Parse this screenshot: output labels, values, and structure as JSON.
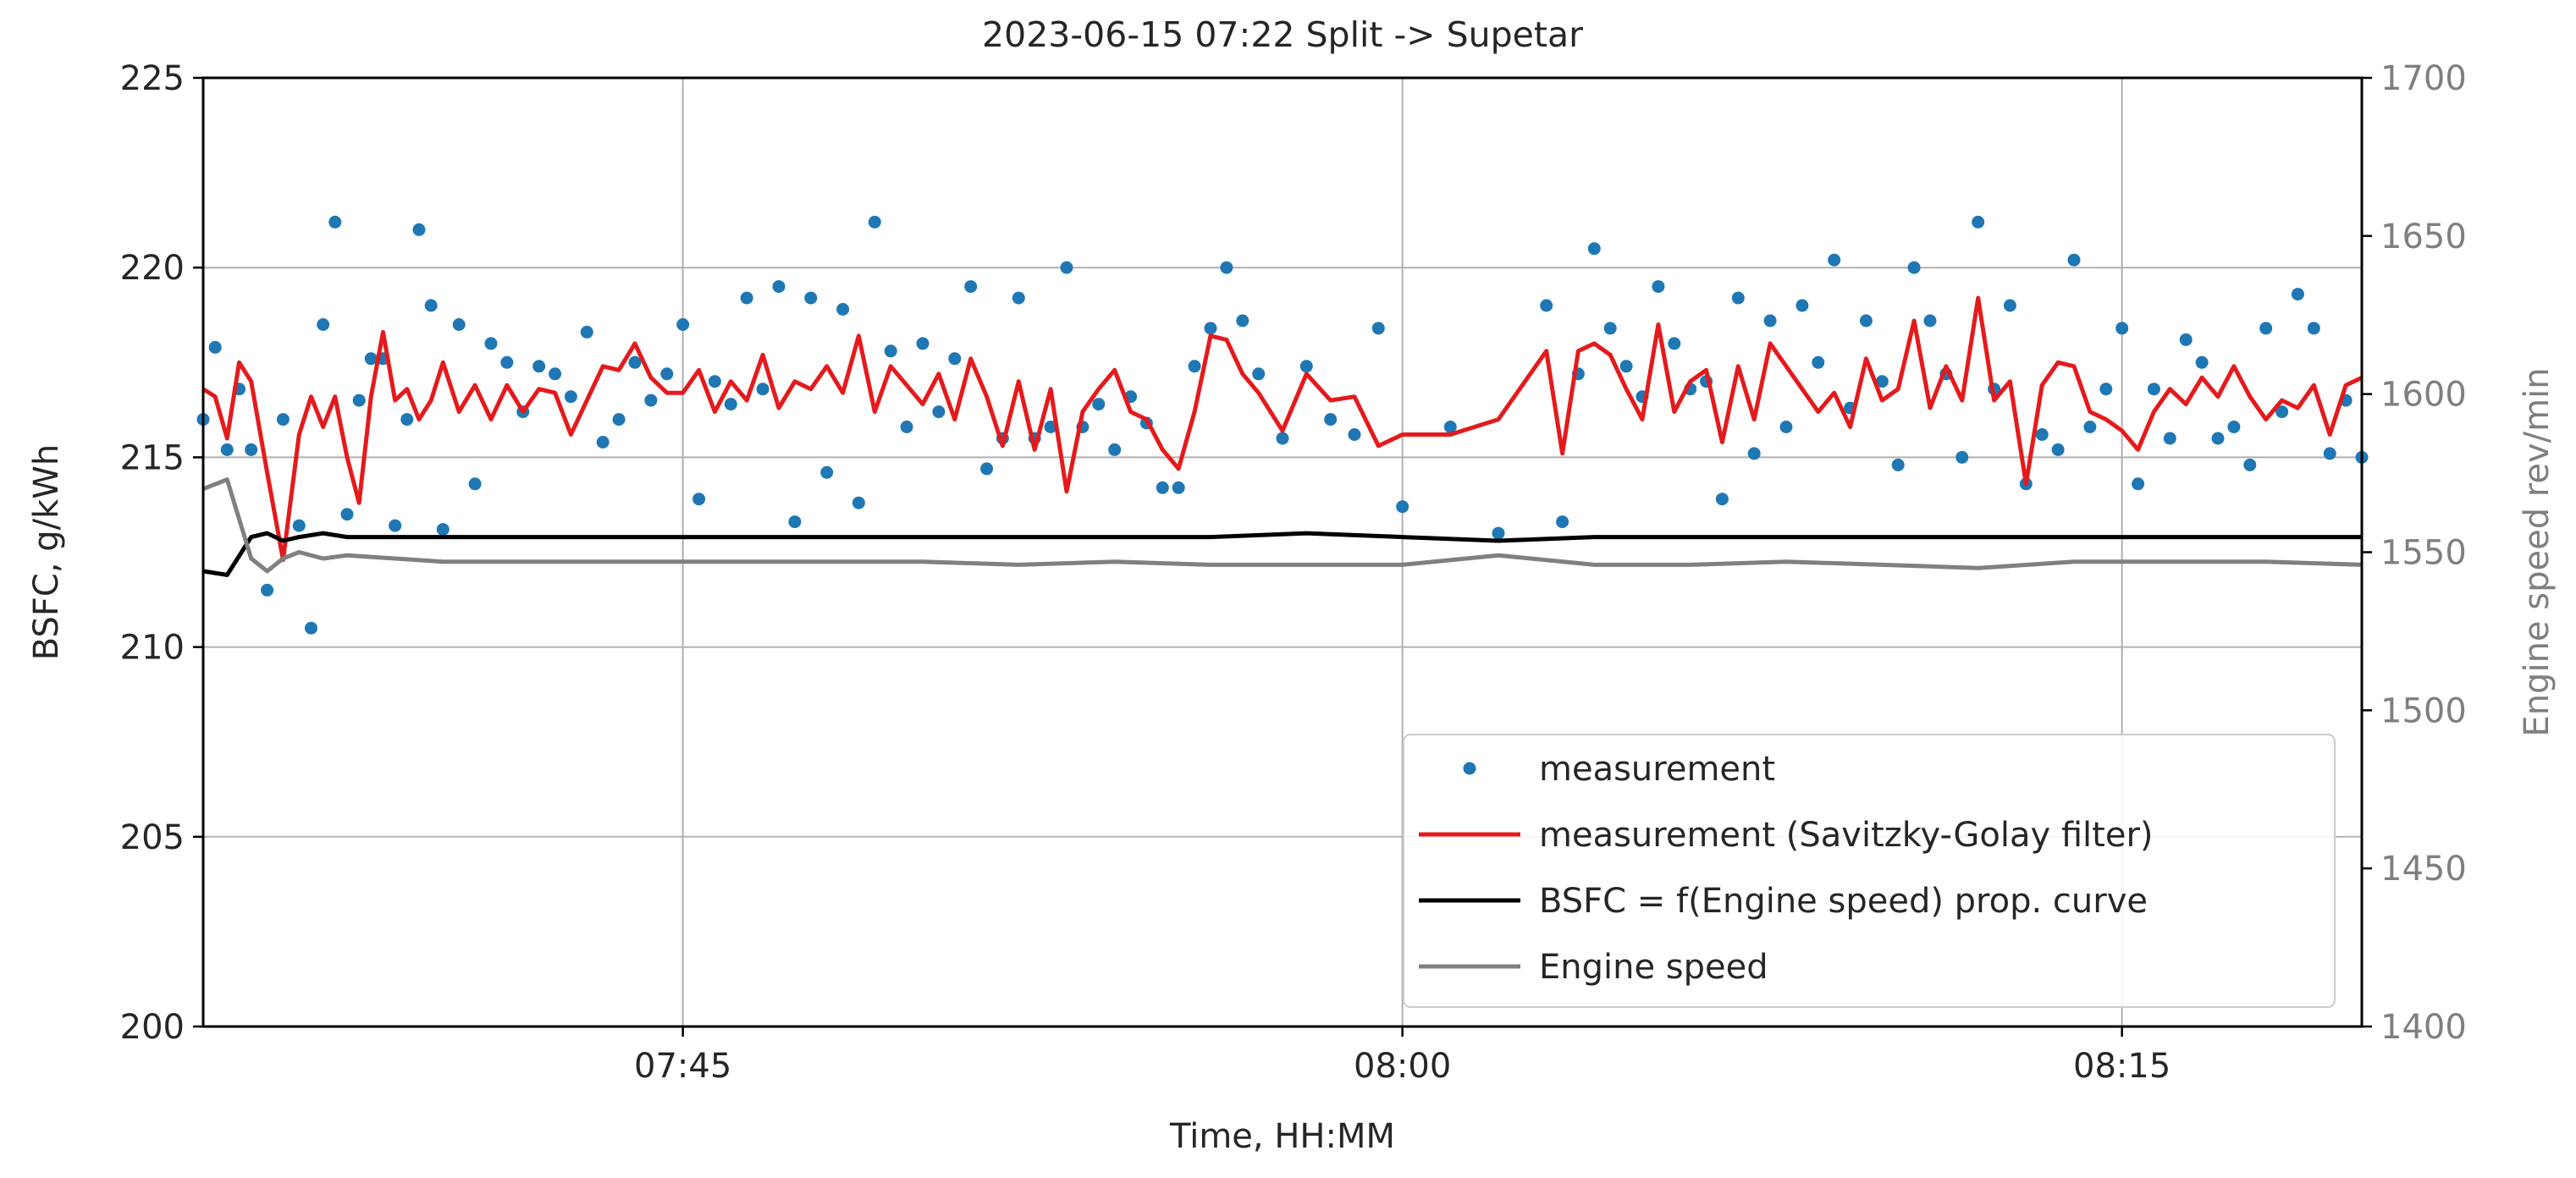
{
  "chart_data": {
    "type": "line",
    "title": "2023-06-15  07:22 Split -> Supetar",
    "xlabel": "Time, HH:MM",
    "ylabel": "BSFC, g/kWh",
    "y2label": "Engine speed rev/min",
    "xlim": [
      "07:35",
      "08:20"
    ],
    "ylim": [
      200,
      225
    ],
    "y2lim": [
      1400,
      1700
    ],
    "x_ticks": [
      "07:45",
      "08:00",
      "08:15"
    ],
    "y_ticks": [
      "200",
      "205",
      "210",
      "215",
      "220",
      "225"
    ],
    "y2_ticks": [
      "1400",
      "1450",
      "1500",
      "1550",
      "1600",
      "1650",
      "1700"
    ],
    "grid": true,
    "legend_position": "lower-right",
    "legend": [
      {
        "label": "measurement",
        "style": "dot",
        "color": "#1f77b4"
      },
      {
        "label": "measurement (Savitzky-Golay filter)",
        "style": "line",
        "color": "#e41a1c"
      },
      {
        "label": "BSFC = f(Engine speed) prop. curve",
        "style": "line",
        "color": "#000000"
      },
      {
        "label": "Engine speed",
        "style": "line",
        "color": "#808080"
      }
    ],
    "series": [
      {
        "name": "measurement",
        "kind": "scatter",
        "axis": "left",
        "color": "#1f77b4",
        "x": [
          "07:35:00",
          "07:35:15",
          "07:35:30",
          "07:35:45",
          "07:36:00",
          "07:36:20",
          "07:36:40",
          "07:37:00",
          "07:37:15",
          "07:37:30",
          "07:37:45",
          "07:38:00",
          "07:38:15",
          "07:38:30",
          "07:38:45",
          "07:39:00",
          "07:39:15",
          "07:39:30",
          "07:39:45",
          "07:40:00",
          "07:40:20",
          "07:40:40",
          "07:41:00",
          "07:41:20",
          "07:41:40",
          "07:42:00",
          "07:42:20",
          "07:42:40",
          "07:43:00",
          "07:43:20",
          "07:43:40",
          "07:44:00",
          "07:44:20",
          "07:44:40",
          "07:45:00",
          "07:45:20",
          "07:45:40",
          "07:46:00",
          "07:46:20",
          "07:46:40",
          "07:47:00",
          "07:47:20",
          "07:47:40",
          "07:48:00",
          "07:48:20",
          "07:48:40",
          "07:49:00",
          "07:49:20",
          "07:49:40",
          "07:50:00",
          "07:50:20",
          "07:50:40",
          "07:51:00",
          "07:51:20",
          "07:51:40",
          "07:52:00",
          "07:52:20",
          "07:52:40",
          "07:53:00",
          "07:53:20",
          "07:53:40",
          "07:54:00",
          "07:54:20",
          "07:54:40",
          "07:55:00",
          "07:55:20",
          "07:55:40",
          "07:56:00",
          "07:56:20",
          "07:56:40",
          "07:57:00",
          "07:57:30",
          "07:58:00",
          "07:58:30",
          "07:59:00",
          "07:59:30",
          "08:00:00",
          "08:01:00",
          "08:02:00",
          "08:03:00",
          "08:03:20",
          "08:03:40",
          "08:04:00",
          "08:04:20",
          "08:04:40",
          "08:05:00",
          "08:05:20",
          "08:05:40",
          "08:06:00",
          "08:06:20",
          "08:06:40",
          "08:07:00",
          "08:07:20",
          "08:07:40",
          "08:08:00",
          "08:08:20",
          "08:08:40",
          "08:09:00",
          "08:09:20",
          "08:09:40",
          "08:10:00",
          "08:10:20",
          "08:10:40",
          "08:11:00",
          "08:11:20",
          "08:11:40",
          "08:12:00",
          "08:12:20",
          "08:12:40",
          "08:13:00",
          "08:13:20",
          "08:13:40",
          "08:14:00",
          "08:14:20",
          "08:14:40",
          "08:15:00",
          "08:15:20",
          "08:15:40",
          "08:16:00",
          "08:16:20",
          "08:16:40",
          "08:17:00",
          "08:17:20",
          "08:17:40",
          "08:18:00",
          "08:18:20",
          "08:18:40",
          "08:19:00",
          "08:19:20",
          "08:19:40",
          "08:20:00"
        ],
        "y": [
          216.0,
          217.9,
          215.2,
          216.8,
          215.2,
          211.5,
          216.0,
          213.2,
          210.5,
          218.5,
          221.2,
          213.5,
          216.5,
          217.6,
          217.6,
          213.2,
          216.0,
          221.0,
          219.0,
          213.1,
          218.5,
          214.3,
          218.0,
          217.5,
          216.2,
          217.4,
          217.2,
          216.6,
          218.3,
          215.4,
          216.0,
          217.5,
          216.5,
          217.2,
          218.5,
          213.9,
          217.0,
          216.4,
          219.2,
          216.8,
          219.5,
          213.3,
          219.2,
          214.6,
          218.9,
          213.8,
          221.2,
          217.8,
          215.8,
          218.0,
          216.2,
          217.6,
          219.5,
          214.7,
          215.5,
          219.2,
          215.5,
          215.8,
          220.0,
          215.8,
          216.4,
          215.2,
          216.6,
          215.9,
          214.2,
          214.2,
          217.4,
          218.4,
          220.0,
          218.6,
          217.2,
          215.5,
          217.4,
          216.0,
          215.6,
          218.4,
          213.7,
          215.8,
          213.0,
          219.0,
          213.3,
          217.2,
          220.5,
          218.4,
          217.4,
          216.6,
          219.5,
          218.0,
          216.8,
          217.0,
          213.9,
          219.2,
          215.1,
          218.6,
          215.8,
          219.0,
          217.5,
          220.2,
          216.3,
          218.6,
          217.0,
          214.8,
          220.0,
          218.6,
          217.2,
          215.0,
          221.2,
          216.8,
          219.0,
          214.3,
          215.6,
          215.2,
          220.2,
          215.8,
          216.8,
          218.4,
          214.3,
          216.8,
          215.5,
          218.1,
          217.5,
          215.5,
          215.8,
          214.8,
          218.4,
          216.2,
          219.3,
          218.4,
          215.1,
          216.5,
          215.0
        ]
      },
      {
        "name": "measurement (Savitzky-Golay filter)",
        "kind": "line",
        "axis": "left",
        "color": "#e41a1c",
        "x": [
          "07:35:00",
          "07:35:15",
          "07:35:30",
          "07:35:45",
          "07:36:00",
          "07:36:20",
          "07:36:40",
          "07:37:00",
          "07:37:15",
          "07:37:30",
          "07:37:45",
          "07:38:00",
          "07:38:15",
          "07:38:30",
          "07:38:45",
          "07:39:00",
          "07:39:15",
          "07:39:30",
          "07:39:45",
          "07:40:00",
          "07:40:20",
          "07:40:40",
          "07:41:00",
          "07:41:20",
          "07:41:40",
          "07:42:00",
          "07:42:20",
          "07:42:40",
          "07:43:00",
          "07:43:20",
          "07:43:40",
          "07:44:00",
          "07:44:20",
          "07:44:40",
          "07:45:00",
          "07:45:20",
          "07:45:40",
          "07:46:00",
          "07:46:20",
          "07:46:40",
          "07:47:00",
          "07:47:20",
          "07:47:40",
          "07:48:00",
          "07:48:20",
          "07:48:40",
          "07:49:00",
          "07:49:20",
          "07:49:40",
          "07:50:00",
          "07:50:20",
          "07:50:40",
          "07:51:00",
          "07:51:20",
          "07:51:40",
          "07:52:00",
          "07:52:20",
          "07:52:40",
          "07:53:00",
          "07:53:20",
          "07:53:40",
          "07:54:00",
          "07:54:20",
          "07:54:40",
          "07:55:00",
          "07:55:20",
          "07:55:40",
          "07:56:00",
          "07:56:20",
          "07:56:40",
          "07:57:00",
          "07:57:30",
          "07:58:00",
          "07:58:30",
          "07:59:00",
          "07:59:30",
          "08:00:00",
          "08:01:00",
          "08:02:00",
          "08:03:00",
          "08:03:20",
          "08:03:40",
          "08:04:00",
          "08:04:20",
          "08:04:40",
          "08:05:00",
          "08:05:20",
          "08:05:40",
          "08:06:00",
          "08:06:20",
          "08:06:40",
          "08:07:00",
          "08:07:20",
          "08:07:40",
          "08:08:00",
          "08:08:20",
          "08:08:40",
          "08:09:00",
          "08:09:20",
          "08:09:40",
          "08:10:00",
          "08:10:20",
          "08:10:40",
          "08:11:00",
          "08:11:20",
          "08:11:40",
          "08:12:00",
          "08:12:20",
          "08:12:40",
          "08:13:00",
          "08:13:20",
          "08:13:40",
          "08:14:00",
          "08:14:20",
          "08:14:40",
          "08:15:00",
          "08:15:20",
          "08:15:40",
          "08:16:00",
          "08:16:20",
          "08:16:40",
          "08:17:00",
          "08:17:20",
          "08:17:40",
          "08:18:00",
          "08:18:20",
          "08:18:40",
          "08:19:00",
          "08:19:20",
          "08:19:40",
          "08:20:00"
        ],
        "y": [
          216.8,
          216.6,
          215.5,
          217.5,
          217.0,
          214.6,
          212.3,
          215.6,
          216.6,
          215.8,
          216.6,
          215.0,
          213.8,
          216.6,
          218.3,
          216.5,
          216.8,
          216.0,
          216.5,
          217.5,
          216.2,
          216.9,
          216.0,
          216.9,
          216.2,
          216.8,
          216.7,
          215.6,
          216.5,
          217.4,
          217.3,
          218.0,
          217.1,
          216.7,
          216.7,
          217.3,
          216.2,
          217.0,
          216.5,
          217.7,
          216.3,
          217.0,
          216.8,
          217.4,
          216.7,
          218.2,
          216.2,
          217.4,
          216.9,
          216.4,
          217.2,
          216.0,
          217.6,
          216.6,
          215.3,
          217.0,
          215.2,
          216.8,
          214.1,
          216.2,
          216.8,
          217.3,
          216.2,
          216.0,
          215.2,
          214.7,
          216.2,
          218.2,
          218.1,
          217.2,
          216.7,
          215.7,
          217.2,
          216.5,
          216.6,
          215.3,
          215.6,
          215.6,
          216.0,
          217.8,
          215.1,
          217.8,
          218.0,
          217.7,
          216.8,
          216.0,
          218.5,
          216.2,
          217.0,
          217.3,
          215.4,
          217.4,
          216.0,
          218.0,
          217.4,
          216.8,
          216.2,
          216.7,
          215.8,
          217.6,
          216.5,
          216.8,
          218.6,
          216.3,
          217.4,
          216.5,
          219.2,
          216.5,
          217.0,
          214.3,
          216.9,
          217.5,
          217.4,
          216.2,
          216.0,
          215.7,
          215.2,
          216.2,
          216.8,
          216.4,
          217.1,
          216.6,
          217.4,
          216.6,
          216.0,
          216.5,
          216.3,
          216.9,
          215.6,
          216.9,
          217.1
        ]
      },
      {
        "name": "BSFC = f(Engine speed) prop. curve",
        "kind": "line",
        "axis": "left",
        "color": "#000000",
        "x": [
          "07:35:00",
          "07:35:30",
          "07:36:00",
          "07:36:20",
          "07:36:40",
          "07:37:00",
          "07:37:30",
          "07:38:00",
          "07:39:00",
          "07:40:00",
          "07:42:00",
          "07:44:00",
          "07:46:00",
          "07:48:00",
          "07:50:00",
          "07:52:00",
          "07:54:00",
          "07:56:00",
          "07:58:00",
          "08:00:00",
          "08:02:00",
          "08:04:00",
          "08:06:00",
          "08:08:00",
          "08:10:00",
          "08:12:00",
          "08:14:00",
          "08:16:00",
          "08:18:00",
          "08:20:00"
        ],
        "y": [
          212.0,
          211.9,
          212.9,
          213.0,
          212.8,
          212.9,
          213.0,
          212.9,
          212.9,
          212.9,
          212.9,
          212.9,
          212.9,
          212.9,
          212.9,
          212.9,
          212.9,
          212.9,
          213.0,
          212.9,
          212.8,
          212.9,
          212.9,
          212.9,
          212.9,
          212.9,
          212.9,
          212.9,
          212.9,
          212.9
        ]
      },
      {
        "name": "Engine speed",
        "kind": "line",
        "axis": "right",
        "color": "#808080",
        "x": [
          "07:35:00",
          "07:35:30",
          "07:36:00",
          "07:36:20",
          "07:36:40",
          "07:37:00",
          "07:37:30",
          "07:38:00",
          "07:39:00",
          "07:40:00",
          "07:42:00",
          "07:44:00",
          "07:46:00",
          "07:48:00",
          "07:50:00",
          "07:52:00",
          "07:54:00",
          "07:56:00",
          "07:58:00",
          "08:00:00",
          "08:02:00",
          "08:04:00",
          "08:06:00",
          "08:08:00",
          "08:10:00",
          "08:12:00",
          "08:14:00",
          "08:16:00",
          "08:18:00",
          "08:20:00"
        ],
        "y": [
          1570,
          1573,
          1548,
          1544,
          1548,
          1550,
          1548,
          1549,
          1548,
          1547,
          1547,
          1547,
          1547,
          1547,
          1547,
          1546,
          1547,
          1546,
          1546,
          1546,
          1549,
          1546,
          1546,
          1547,
          1546,
          1545,
          1547,
          1547,
          1547,
          1546
        ]
      }
    ]
  }
}
